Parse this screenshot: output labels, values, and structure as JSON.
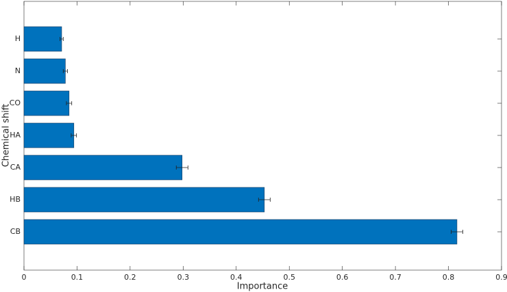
{
  "chart_data": {
    "type": "barh",
    "x_label": "Importance",
    "y_label": "Chemical shift",
    "categories": [
      "CB",
      "HB",
      "CA",
      "HA",
      "CO",
      "N",
      "H"
    ],
    "values": [
      0.816,
      0.453,
      0.298,
      0.094,
      0.085,
      0.078,
      0.071
    ],
    "errors": [
      0.011,
      0.011,
      0.011,
      0.005,
      0.005,
      0.004,
      0.003
    ],
    "color": "#0072bd",
    "xlim": [
      0,
      0.9
    ],
    "xticks": [
      0,
      0.1,
      0.2,
      0.3,
      0.4,
      0.5,
      0.6,
      0.7,
      0.8,
      0.9
    ]
  }
}
